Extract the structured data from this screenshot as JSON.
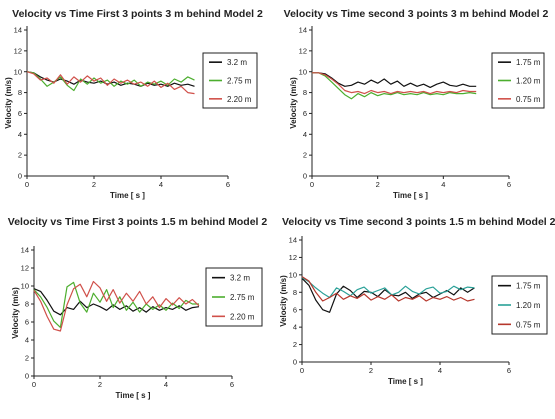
{
  "chart_data": [
    {
      "type": "line",
      "title": "Velocity vs Time First 3 points 3 m behind Model 2",
      "xlabel": "Time [ s ]",
      "ylabel": "Velocity (m/s)",
      "xlim": [
        0,
        6
      ],
      "ylim": [
        0,
        14
      ],
      "xticks": [
        0,
        2,
        4,
        6
      ],
      "yticks": [
        0,
        2,
        4,
        6,
        8,
        10,
        12,
        14
      ],
      "legend": "right",
      "series": [
        {
          "name": "3.2 m",
          "color": "#111111",
          "x": [
            0,
            0.2,
            0.4,
            0.6,
            0.8,
            1.0,
            1.2,
            1.4,
            1.6,
            1.8,
            2.0,
            2.2,
            2.4,
            2.6,
            2.8,
            3.0,
            3.2,
            3.4,
            3.6,
            3.8,
            4.0,
            4.2,
            4.4,
            4.6,
            4.8,
            5.0
          ],
          "y": [
            10.0,
            9.9,
            9.5,
            9.2,
            9.0,
            9.3,
            9.1,
            8.8,
            9.2,
            9.0,
            8.9,
            9.1,
            8.8,
            9.0,
            8.7,
            8.9,
            8.8,
            8.6,
            8.9,
            8.7,
            8.8,
            8.6,
            8.9,
            8.7,
            8.8,
            8.6
          ]
        },
        {
          "name": "2.75 m",
          "color": "#4cae2e",
          "x": [
            0,
            0.2,
            0.4,
            0.6,
            0.8,
            1.0,
            1.2,
            1.4,
            1.6,
            1.8,
            2.0,
            2.2,
            2.4,
            2.6,
            2.8,
            3.0,
            3.2,
            3.4,
            3.6,
            3.8,
            4.0,
            4.2,
            4.4,
            4.6,
            4.8,
            5.0
          ],
          "y": [
            10.0,
            9.9,
            9.3,
            8.6,
            9.0,
            9.5,
            8.7,
            8.2,
            9.3,
            8.8,
            9.4,
            8.9,
            9.2,
            8.6,
            9.1,
            8.8,
            9.2,
            8.6,
            9.0,
            8.8,
            9.1,
            8.7,
            9.3,
            9.0,
            9.5,
            9.2
          ]
        },
        {
          "name": "2.20 m",
          "color": "#d0504a",
          "x": [
            0,
            0.2,
            0.4,
            0.6,
            0.8,
            1.0,
            1.2,
            1.4,
            1.6,
            1.8,
            2.0,
            2.2,
            2.4,
            2.6,
            2.8,
            3.0,
            3.2,
            3.4,
            3.6,
            3.8,
            4.0,
            4.2,
            4.4,
            4.6,
            4.8,
            5.0
          ],
          "y": [
            10.0,
            9.8,
            9.2,
            9.4,
            8.9,
            9.7,
            8.8,
            9.5,
            9.0,
            9.6,
            9.1,
            9.4,
            8.7,
            9.3,
            8.9,
            9.2,
            8.8,
            9.0,
            8.6,
            9.1,
            8.5,
            8.9,
            8.3,
            8.6,
            8.0,
            7.9
          ]
        }
      ]
    },
    {
      "type": "line",
      "title": "Velocity vs Time second 3 points 3 m behind Model 2",
      "xlabel": "Time [ s ]",
      "ylabel": "Velocity (m/s)",
      "xlim": [
        0,
        6
      ],
      "ylim": [
        0,
        14
      ],
      "xticks": [
        0,
        2,
        4,
        6
      ],
      "yticks": [
        0,
        2,
        4,
        6,
        8,
        10,
        12,
        14
      ],
      "legend": "right",
      "series": [
        {
          "name": "1.75 m",
          "color": "#111111",
          "x": [
            0,
            0.2,
            0.4,
            0.6,
            0.8,
            1.0,
            1.2,
            1.4,
            1.6,
            1.8,
            2.0,
            2.2,
            2.4,
            2.6,
            2.8,
            3.0,
            3.2,
            3.4,
            3.6,
            3.8,
            4.0,
            4.2,
            4.4,
            4.6,
            4.8,
            5.0
          ],
          "y": [
            9.9,
            9.9,
            9.8,
            9.4,
            8.9,
            8.6,
            8.7,
            9.0,
            8.8,
            9.2,
            8.9,
            9.3,
            8.8,
            9.1,
            8.6,
            8.9,
            8.6,
            8.8,
            8.5,
            8.8,
            9.0,
            8.7,
            8.6,
            8.8,
            8.6,
            8.6
          ]
        },
        {
          "name": "1.20 m",
          "color": "#4cae2e",
          "x": [
            0,
            0.2,
            0.4,
            0.6,
            0.8,
            1.0,
            1.2,
            1.4,
            1.6,
            1.8,
            2.0,
            2.2,
            2.4,
            2.6,
            2.8,
            3.0,
            3.2,
            3.4,
            3.6,
            3.8,
            4.0,
            4.2,
            4.4,
            4.6,
            4.8,
            5.0
          ],
          "y": [
            9.9,
            9.9,
            9.6,
            9.0,
            8.4,
            7.8,
            7.4,
            7.9,
            7.6,
            8.0,
            7.7,
            7.9,
            7.8,
            8.0,
            7.8,
            7.9,
            7.8,
            8.0,
            7.8,
            7.9,
            7.8,
            8.0,
            7.9,
            7.9,
            8.0,
            7.9
          ]
        },
        {
          "name": "0.75 m",
          "color": "#d0504a",
          "x": [
            0,
            0.2,
            0.4,
            0.6,
            0.8,
            1.0,
            1.2,
            1.4,
            1.6,
            1.8,
            2.0,
            2.2,
            2.4,
            2.6,
            2.8,
            3.0,
            3.2,
            3.4,
            3.6,
            3.8,
            4.0,
            4.2,
            4.4,
            4.6,
            4.8,
            5.0
          ],
          "y": [
            9.9,
            9.9,
            9.7,
            9.3,
            8.8,
            8.2,
            8.0,
            8.1,
            7.9,
            8.2,
            8.0,
            8.1,
            7.9,
            8.1,
            8.0,
            8.1,
            8.0,
            8.1,
            7.9,
            8.1,
            8.0,
            8.1,
            8.0,
            8.2,
            8.1,
            8.1
          ]
        }
      ]
    },
    {
      "type": "line",
      "title": "Velocity vs Time First 3 points 1.5 m behind Model 2",
      "xlabel": "Time [ s ]",
      "ylabel": "Velocity (m/s)",
      "xlim": [
        0,
        6
      ],
      "ylim": [
        0,
        14
      ],
      "xticks": [
        0,
        2,
        4,
        6
      ],
      "yticks": [
        0,
        2,
        4,
        6,
        8,
        10,
        12,
        14
      ],
      "legend": "right",
      "series": [
        {
          "name": "3.2 m",
          "color": "#111111",
          "x": [
            0,
            0.2,
            0.4,
            0.6,
            0.8,
            1.0,
            1.2,
            1.4,
            1.6,
            1.8,
            2.0,
            2.2,
            2.4,
            2.6,
            2.8,
            3.0,
            3.2,
            3.4,
            3.6,
            3.8,
            4.0,
            4.2,
            4.4,
            4.6,
            4.8,
            5.0
          ],
          "y": [
            9.7,
            9.4,
            8.4,
            7.2,
            6.8,
            7.6,
            7.4,
            8.3,
            7.6,
            8.0,
            7.7,
            7.3,
            7.9,
            7.4,
            7.8,
            7.2,
            7.6,
            7.1,
            7.7,
            7.3,
            7.6,
            7.4,
            7.8,
            7.3,
            7.6,
            7.7
          ]
        },
        {
          "name": "2.75 m",
          "color": "#4cae2e",
          "x": [
            0,
            0.2,
            0.4,
            0.6,
            0.8,
            1.0,
            1.2,
            1.4,
            1.6,
            1.8,
            2.0,
            2.2,
            2.4,
            2.6,
            2.8,
            3.0,
            3.2,
            3.4,
            3.6,
            3.8,
            4.0,
            4.2,
            4.4,
            4.6,
            4.8,
            5.0
          ],
          "y": [
            9.6,
            8.8,
            7.6,
            6.1,
            5.4,
            9.9,
            10.4,
            8.1,
            7.1,
            9.2,
            8.2,
            9.6,
            7.6,
            8.8,
            7.3,
            8.2,
            7.1,
            8.0,
            7.4,
            7.9,
            7.3,
            8.1,
            7.5,
            8.4,
            8.0,
            8.0
          ]
        },
        {
          "name": "2.20 m",
          "color": "#d0504a",
          "x": [
            0,
            0.2,
            0.4,
            0.6,
            0.8,
            1.0,
            1.2,
            1.4,
            1.6,
            1.8,
            2.0,
            2.2,
            2.4,
            2.6,
            2.8,
            3.0,
            3.2,
            3.4,
            3.6,
            3.8,
            4.0,
            4.2,
            4.4,
            4.6,
            4.8,
            5.0
          ],
          "y": [
            9.5,
            8.3,
            6.6,
            5.2,
            5.0,
            7.9,
            9.7,
            10.2,
            8.8,
            10.5,
            9.8,
            8.3,
            9.6,
            8.1,
            9.2,
            8.3,
            9.4,
            8.0,
            8.8,
            7.6,
            8.6,
            7.9,
            8.7,
            8.0,
            8.5,
            7.8
          ]
        }
      ]
    },
    {
      "type": "line",
      "title": "Velocity vs Time second 3 points 1.5 m behind Model 2",
      "xlabel": "Time [ s ]",
      "ylabel": "Velocity (m/s)",
      "xlim": [
        0,
        6
      ],
      "ylim": [
        0,
        14
      ],
      "xticks": [
        0,
        2,
        4,
        6
      ],
      "yticks": [
        0,
        2,
        4,
        6,
        8,
        10,
        12,
        14
      ],
      "legend": "right",
      "series": [
        {
          "name": "1.75 m",
          "color": "#111111",
          "x": [
            0,
            0.2,
            0.4,
            0.6,
            0.8,
            1.0,
            1.2,
            1.4,
            1.6,
            1.8,
            2.0,
            2.2,
            2.4,
            2.6,
            2.8,
            3.0,
            3.2,
            3.4,
            3.6,
            3.8,
            4.0,
            4.2,
            4.4,
            4.6,
            4.8,
            5.0
          ],
          "y": [
            9.6,
            8.8,
            7.1,
            6.0,
            5.7,
            7.8,
            8.7,
            8.2,
            7.4,
            8.1,
            8.0,
            7.5,
            8.3,
            7.7,
            7.6,
            8.0,
            7.3,
            7.8,
            8.0,
            7.4,
            7.8,
            8.2,
            7.7,
            8.5,
            8.0,
            8.5
          ]
        },
        {
          "name": "1.20 m",
          "color": "#2aa198",
          "x": [
            0,
            0.2,
            0.4,
            0.6,
            0.8,
            1.0,
            1.2,
            1.4,
            1.6,
            1.8,
            2.0,
            2.2,
            2.4,
            2.6,
            2.8,
            3.0,
            3.2,
            3.4,
            3.6,
            3.8,
            4.0,
            4.2,
            4.4,
            4.6,
            4.8,
            5.0
          ],
          "y": [
            9.7,
            9.2,
            8.5,
            7.9,
            7.4,
            8.5,
            8.1,
            7.6,
            8.3,
            8.6,
            7.9,
            8.2,
            8.5,
            7.7,
            8.0,
            8.7,
            8.1,
            7.8,
            8.4,
            8.6,
            7.9,
            8.1,
            8.7,
            8.3,
            8.6,
            8.5
          ]
        },
        {
          "name": "0.75 m",
          "color": "#b6372c",
          "x": [
            0,
            0.2,
            0.4,
            0.6,
            0.8,
            1.0,
            1.2,
            1.4,
            1.6,
            1.8,
            2.0,
            2.2,
            2.4,
            2.6,
            2.8,
            3.0,
            3.2,
            3.4,
            3.6,
            3.8,
            4.0,
            4.2,
            4.4,
            4.6,
            4.8,
            5.0
          ],
          "y": [
            9.8,
            9.3,
            8.0,
            7.0,
            7.4,
            7.9,
            7.2,
            7.6,
            7.3,
            7.8,
            7.1,
            7.5,
            7.2,
            7.7,
            7.0,
            7.4,
            7.2,
            7.6,
            7.0,
            7.4,
            7.2,
            7.5,
            7.1,
            7.4,
            7.0,
            7.2
          ]
        }
      ]
    }
  ]
}
